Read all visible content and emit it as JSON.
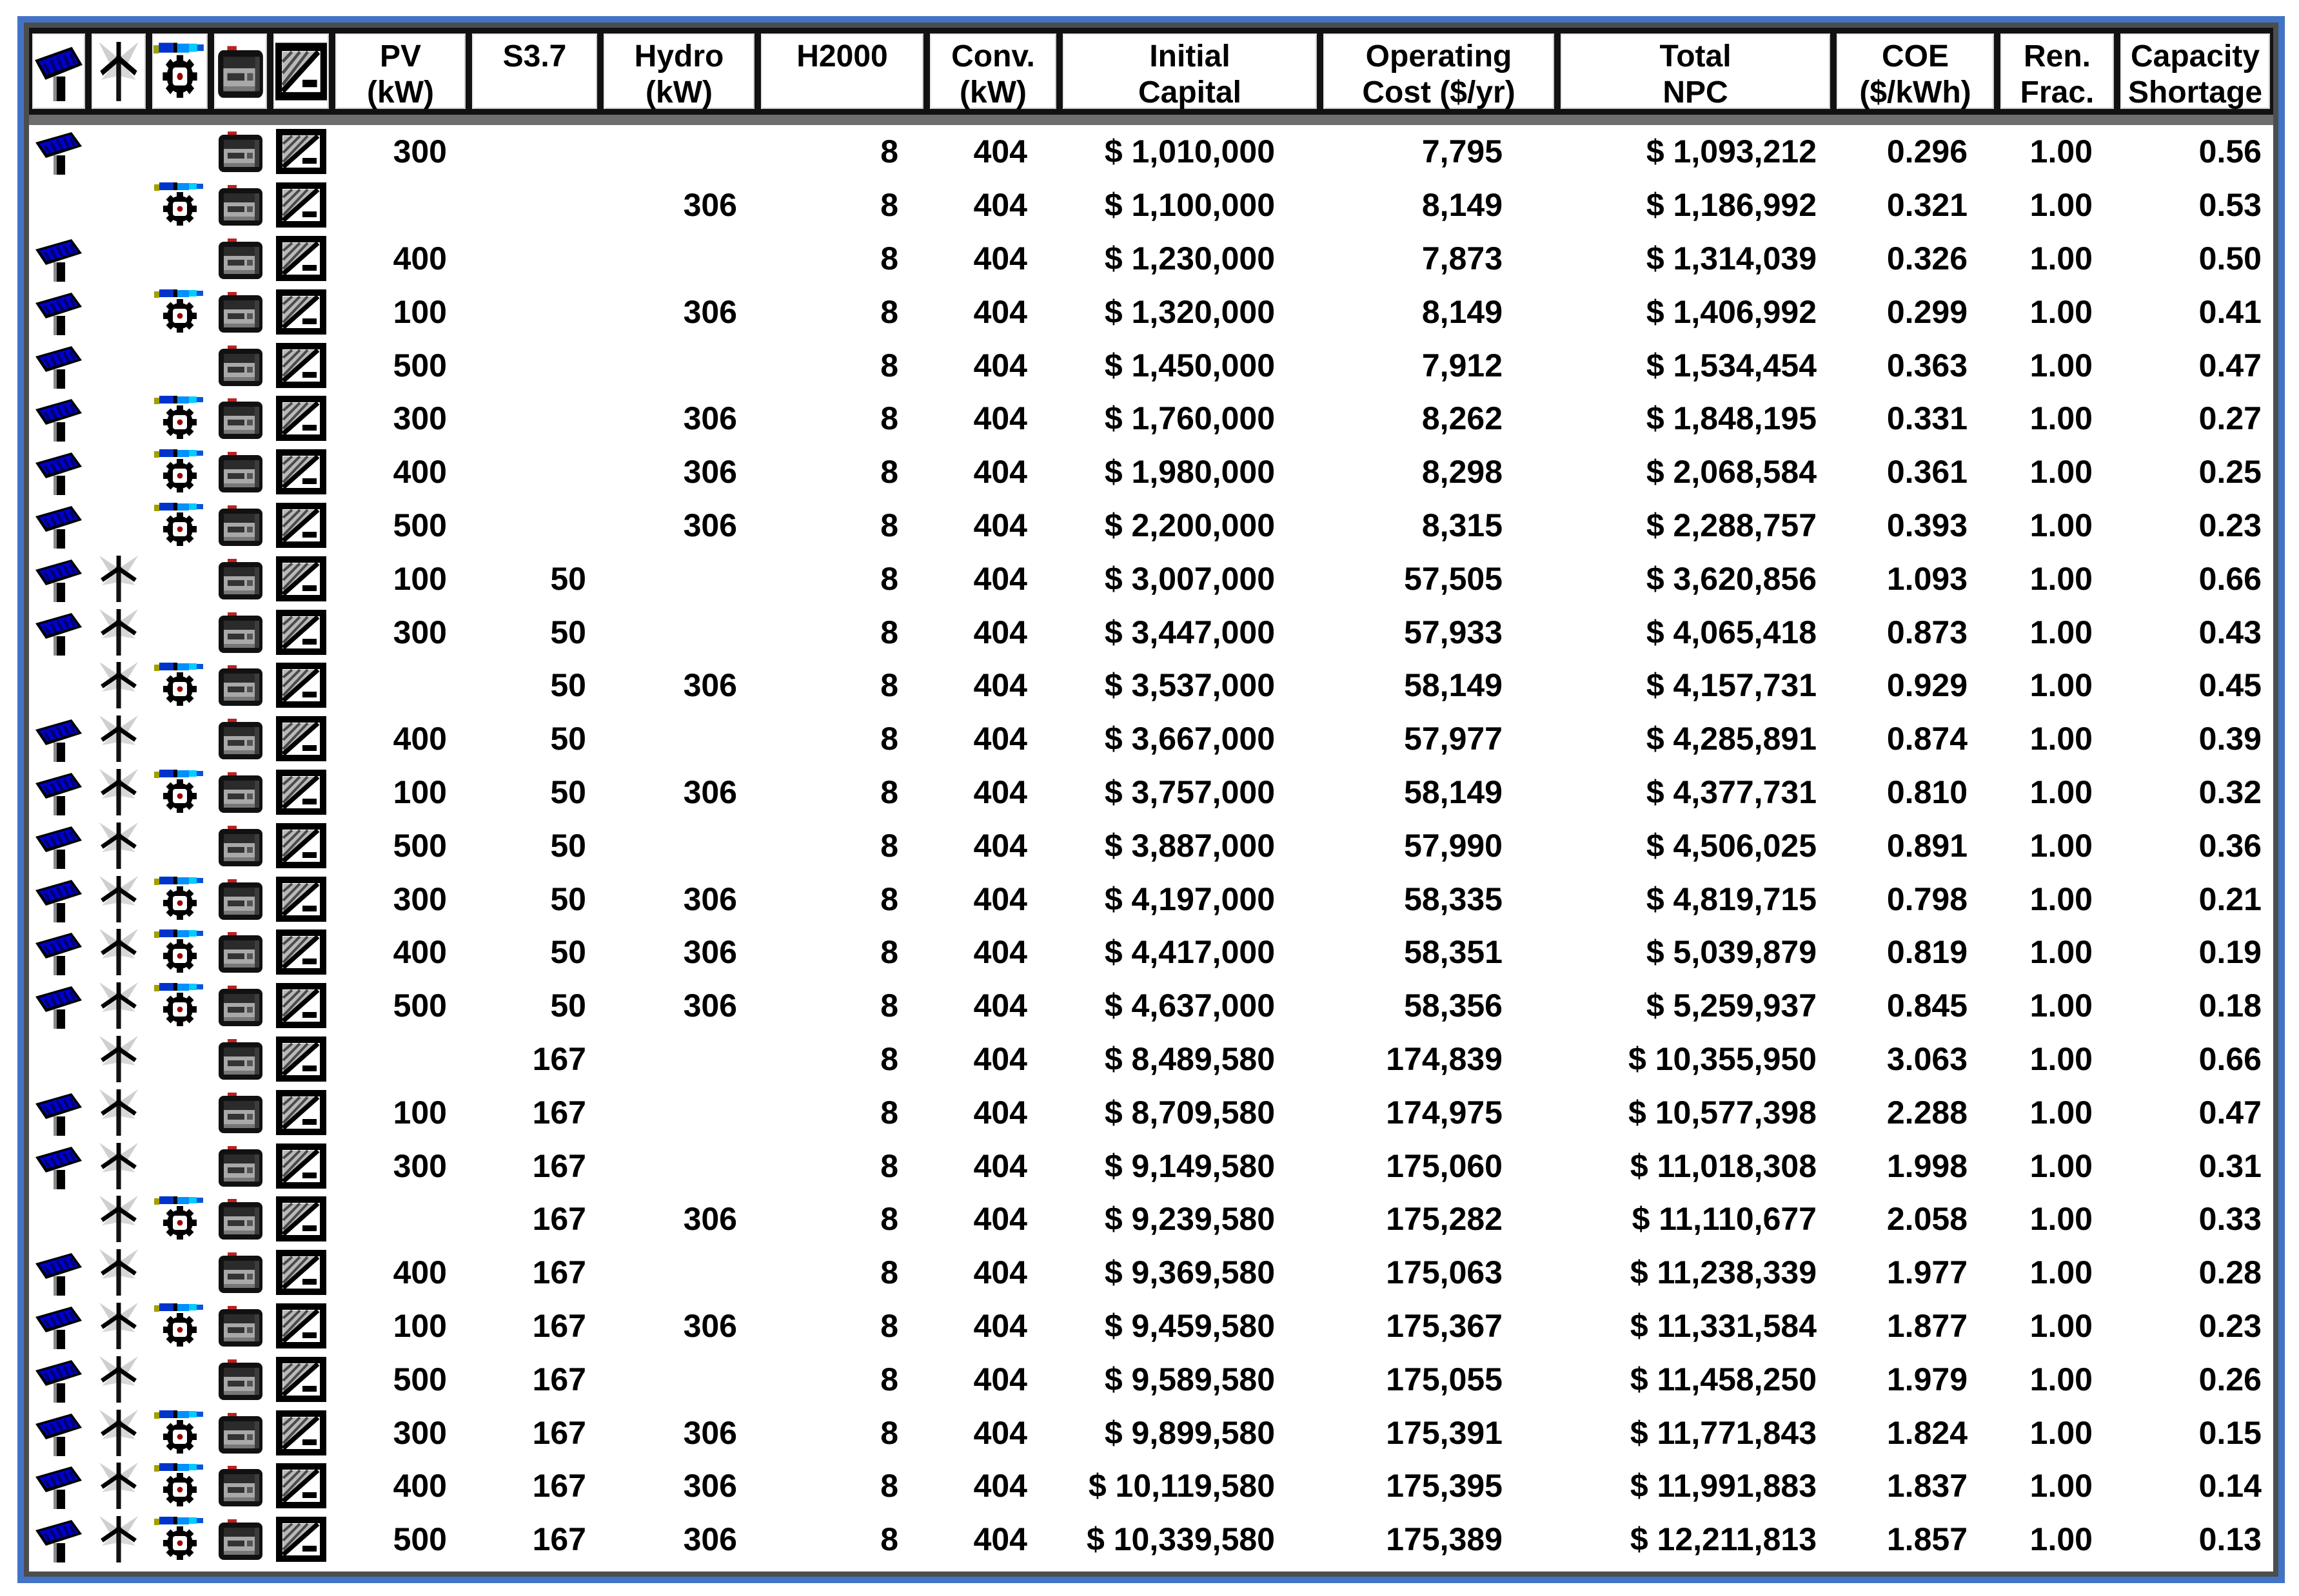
{
  "app": "HOMER optimization results table",
  "colors": {
    "outer_border_blue": "#4273c4",
    "inner_frame_gray": "#4d4d4d",
    "header_strip_gray": "#7b7b7b",
    "header_band_gray": "#6e6e6e",
    "cell_border_black": "#121212",
    "text_black": "#000000",
    "pv_panel_blue": "#0000cc",
    "water_dark_blue": "#0033cc",
    "water_bright_blue": "#0090ff",
    "water_cyan": "#00ccff",
    "battery_terminal_red": "#bb2222",
    "hub_dot_red": "#990000",
    "ghost_blade_gray": "#cfcfcf"
  },
  "table": {
    "columns": [
      {
        "type": "icon",
        "component": "pv",
        "icon_name": "pv-panel-icon"
      },
      {
        "type": "icon",
        "component": "wind",
        "icon_name": "wind-turbine-icon"
      },
      {
        "type": "icon",
        "component": "hydro",
        "icon_name": "hydro-turbine-icon"
      },
      {
        "type": "icon",
        "component": "battery",
        "icon_name": "battery-icon"
      },
      {
        "type": "icon",
        "component": "converter",
        "icon_name": "converter-icon"
      },
      {
        "type": "data",
        "key": "pv_kw",
        "lines": [
          "PV",
          "(kW)"
        ]
      },
      {
        "type": "data",
        "key": "s37",
        "lines": [
          "S3.7"
        ]
      },
      {
        "type": "data",
        "key": "hydro_kw",
        "lines": [
          "Hydro",
          "(kW)"
        ]
      },
      {
        "type": "data",
        "key": "h2000",
        "lines": [
          "H2000"
        ]
      },
      {
        "type": "data",
        "key": "conv_kw",
        "lines": [
          "Conv.",
          "(kW)"
        ]
      },
      {
        "type": "data",
        "key": "initial_capital",
        "lines": [
          "Initial",
          "Capital"
        ]
      },
      {
        "type": "data",
        "key": "operating_cost",
        "lines": [
          "Operating",
          "Cost ($/yr)"
        ]
      },
      {
        "type": "data",
        "key": "total_npc",
        "lines": [
          "Total",
          "NPC"
        ]
      },
      {
        "type": "data",
        "key": "coe",
        "lines": [
          "COE",
          "($/kWh)"
        ]
      },
      {
        "type": "data",
        "key": "ren_frac",
        "lines": [
          "Ren.",
          "Frac."
        ]
      },
      {
        "type": "data",
        "key": "capacity_shortage",
        "lines": [
          "Capacity",
          "Shortage"
        ]
      }
    ],
    "rows": [
      {
        "icons": [
          "pv",
          "battery",
          "converter"
        ],
        "pv_kw": "300",
        "s37": "",
        "hydro_kw": "",
        "h2000": "8",
        "conv_kw": "404",
        "initial_capital": "$ 1,010,000",
        "operating_cost": "7,795",
        "total_npc": "$ 1,093,212",
        "coe": "0.296",
        "ren_frac": "1.00",
        "capacity_shortage": "0.56"
      },
      {
        "icons": [
          "hydro",
          "battery",
          "converter"
        ],
        "pv_kw": "",
        "s37": "",
        "hydro_kw": "306",
        "h2000": "8",
        "conv_kw": "404",
        "initial_capital": "$ 1,100,000",
        "operating_cost": "8,149",
        "total_npc": "$ 1,186,992",
        "coe": "0.321",
        "ren_frac": "1.00",
        "capacity_shortage": "0.53"
      },
      {
        "icons": [
          "pv",
          "battery",
          "converter"
        ],
        "pv_kw": "400",
        "s37": "",
        "hydro_kw": "",
        "h2000": "8",
        "conv_kw": "404",
        "initial_capital": "$ 1,230,000",
        "operating_cost": "7,873",
        "total_npc": "$ 1,314,039",
        "coe": "0.326",
        "ren_frac": "1.00",
        "capacity_shortage": "0.50"
      },
      {
        "icons": [
          "pv",
          "hydro",
          "battery",
          "converter"
        ],
        "pv_kw": "100",
        "s37": "",
        "hydro_kw": "306",
        "h2000": "8",
        "conv_kw": "404",
        "initial_capital": "$ 1,320,000",
        "operating_cost": "8,149",
        "total_npc": "$ 1,406,992",
        "coe": "0.299",
        "ren_frac": "1.00",
        "capacity_shortage": "0.41"
      },
      {
        "icons": [
          "pv",
          "battery",
          "converter"
        ],
        "pv_kw": "500",
        "s37": "",
        "hydro_kw": "",
        "h2000": "8",
        "conv_kw": "404",
        "initial_capital": "$ 1,450,000",
        "operating_cost": "7,912",
        "total_npc": "$ 1,534,454",
        "coe": "0.363",
        "ren_frac": "1.00",
        "capacity_shortage": "0.47"
      },
      {
        "icons": [
          "pv",
          "hydro",
          "battery",
          "converter"
        ],
        "pv_kw": "300",
        "s37": "",
        "hydro_kw": "306",
        "h2000": "8",
        "conv_kw": "404",
        "initial_capital": "$ 1,760,000",
        "operating_cost": "8,262",
        "total_npc": "$ 1,848,195",
        "coe": "0.331",
        "ren_frac": "1.00",
        "capacity_shortage": "0.27"
      },
      {
        "icons": [
          "pv",
          "hydro",
          "battery",
          "converter"
        ],
        "pv_kw": "400",
        "s37": "",
        "hydro_kw": "306",
        "h2000": "8",
        "conv_kw": "404",
        "initial_capital": "$ 1,980,000",
        "operating_cost": "8,298",
        "total_npc": "$ 2,068,584",
        "coe": "0.361",
        "ren_frac": "1.00",
        "capacity_shortage": "0.25"
      },
      {
        "icons": [
          "pv",
          "hydro",
          "battery",
          "converter"
        ],
        "pv_kw": "500",
        "s37": "",
        "hydro_kw": "306",
        "h2000": "8",
        "conv_kw": "404",
        "initial_capital": "$ 2,200,000",
        "operating_cost": "8,315",
        "total_npc": "$ 2,288,757",
        "coe": "0.393",
        "ren_frac": "1.00",
        "capacity_shortage": "0.23"
      },
      {
        "icons": [
          "pv",
          "wind",
          "battery",
          "converter"
        ],
        "pv_kw": "100",
        "s37": "50",
        "hydro_kw": "",
        "h2000": "8",
        "conv_kw": "404",
        "initial_capital": "$ 3,007,000",
        "operating_cost": "57,505",
        "total_npc": "$ 3,620,856",
        "coe": "1.093",
        "ren_frac": "1.00",
        "capacity_shortage": "0.66"
      },
      {
        "icons": [
          "pv",
          "wind",
          "battery",
          "converter"
        ],
        "pv_kw": "300",
        "s37": "50",
        "hydro_kw": "",
        "h2000": "8",
        "conv_kw": "404",
        "initial_capital": "$ 3,447,000",
        "operating_cost": "57,933",
        "total_npc": "$ 4,065,418",
        "coe": "0.873",
        "ren_frac": "1.00",
        "capacity_shortage": "0.43"
      },
      {
        "icons": [
          "wind",
          "hydro",
          "battery",
          "converter"
        ],
        "pv_kw": "",
        "s37": "50",
        "hydro_kw": "306",
        "h2000": "8",
        "conv_kw": "404",
        "initial_capital": "$ 3,537,000",
        "operating_cost": "58,149",
        "total_npc": "$ 4,157,731",
        "coe": "0.929",
        "ren_frac": "1.00",
        "capacity_shortage": "0.45"
      },
      {
        "icons": [
          "pv",
          "wind",
          "battery",
          "converter"
        ],
        "pv_kw": "400",
        "s37": "50",
        "hydro_kw": "",
        "h2000": "8",
        "conv_kw": "404",
        "initial_capital": "$ 3,667,000",
        "operating_cost": "57,977",
        "total_npc": "$ 4,285,891",
        "coe": "0.874",
        "ren_frac": "1.00",
        "capacity_shortage": "0.39"
      },
      {
        "icons": [
          "pv",
          "wind",
          "hydro",
          "battery",
          "converter"
        ],
        "pv_kw": "100",
        "s37": "50",
        "hydro_kw": "306",
        "h2000": "8",
        "conv_kw": "404",
        "initial_capital": "$ 3,757,000",
        "operating_cost": "58,149",
        "total_npc": "$ 4,377,731",
        "coe": "0.810",
        "ren_frac": "1.00",
        "capacity_shortage": "0.32"
      },
      {
        "icons": [
          "pv",
          "wind",
          "battery",
          "converter"
        ],
        "pv_kw": "500",
        "s37": "50",
        "hydro_kw": "",
        "h2000": "8",
        "conv_kw": "404",
        "initial_capital": "$ 3,887,000",
        "operating_cost": "57,990",
        "total_npc": "$ 4,506,025",
        "coe": "0.891",
        "ren_frac": "1.00",
        "capacity_shortage": "0.36"
      },
      {
        "icons": [
          "pv",
          "wind",
          "hydro",
          "battery",
          "converter"
        ],
        "pv_kw": "300",
        "s37": "50",
        "hydro_kw": "306",
        "h2000": "8",
        "conv_kw": "404",
        "initial_capital": "$ 4,197,000",
        "operating_cost": "58,335",
        "total_npc": "$ 4,819,715",
        "coe": "0.798",
        "ren_frac": "1.00",
        "capacity_shortage": "0.21"
      },
      {
        "icons": [
          "pv",
          "wind",
          "hydro",
          "battery",
          "converter"
        ],
        "pv_kw": "400",
        "s37": "50",
        "hydro_kw": "306",
        "h2000": "8",
        "conv_kw": "404",
        "initial_capital": "$ 4,417,000",
        "operating_cost": "58,351",
        "total_npc": "$ 5,039,879",
        "coe": "0.819",
        "ren_frac": "1.00",
        "capacity_shortage": "0.19"
      },
      {
        "icons": [
          "pv",
          "wind",
          "hydro",
          "battery",
          "converter"
        ],
        "pv_kw": "500",
        "s37": "50",
        "hydro_kw": "306",
        "h2000": "8",
        "conv_kw": "404",
        "initial_capital": "$ 4,637,000",
        "operating_cost": "58,356",
        "total_npc": "$ 5,259,937",
        "coe": "0.845",
        "ren_frac": "1.00",
        "capacity_shortage": "0.18"
      },
      {
        "icons": [
          "wind",
          "battery",
          "converter"
        ],
        "pv_kw": "",
        "s37": "167",
        "hydro_kw": "",
        "h2000": "8",
        "conv_kw": "404",
        "initial_capital": "$ 8,489,580",
        "operating_cost": "174,839",
        "total_npc": "$ 10,355,950",
        "coe": "3.063",
        "ren_frac": "1.00",
        "capacity_shortage": "0.66"
      },
      {
        "icons": [
          "pv",
          "wind",
          "battery",
          "converter"
        ],
        "pv_kw": "100",
        "s37": "167",
        "hydro_kw": "",
        "h2000": "8",
        "conv_kw": "404",
        "initial_capital": "$ 8,709,580",
        "operating_cost": "174,975",
        "total_npc": "$ 10,577,398",
        "coe": "2.288",
        "ren_frac": "1.00",
        "capacity_shortage": "0.47"
      },
      {
        "icons": [
          "pv",
          "wind",
          "battery",
          "converter"
        ],
        "pv_kw": "300",
        "s37": "167",
        "hydro_kw": "",
        "h2000": "8",
        "conv_kw": "404",
        "initial_capital": "$ 9,149,580",
        "operating_cost": "175,060",
        "total_npc": "$ 11,018,308",
        "coe": "1.998",
        "ren_frac": "1.00",
        "capacity_shortage": "0.31"
      },
      {
        "icons": [
          "wind",
          "hydro",
          "battery",
          "converter"
        ],
        "pv_kw": "",
        "s37": "167",
        "hydro_kw": "306",
        "h2000": "8",
        "conv_kw": "404",
        "initial_capital": "$ 9,239,580",
        "operating_cost": "175,282",
        "total_npc": "$ 11,110,677",
        "coe": "2.058",
        "ren_frac": "1.00",
        "capacity_shortage": "0.33"
      },
      {
        "icons": [
          "pv",
          "wind",
          "battery",
          "converter"
        ],
        "pv_kw": "400",
        "s37": "167",
        "hydro_kw": "",
        "h2000": "8",
        "conv_kw": "404",
        "initial_capital": "$ 9,369,580",
        "operating_cost": "175,063",
        "total_npc": "$ 11,238,339",
        "coe": "1.977",
        "ren_frac": "1.00",
        "capacity_shortage": "0.28"
      },
      {
        "icons": [
          "pv",
          "wind",
          "hydro",
          "battery",
          "converter"
        ],
        "pv_kw": "100",
        "s37": "167",
        "hydro_kw": "306",
        "h2000": "8",
        "conv_kw": "404",
        "initial_capital": "$ 9,459,580",
        "operating_cost": "175,367",
        "total_npc": "$ 11,331,584",
        "coe": "1.877",
        "ren_frac": "1.00",
        "capacity_shortage": "0.23"
      },
      {
        "icons": [
          "pv",
          "wind",
          "battery",
          "converter"
        ],
        "pv_kw": "500",
        "s37": "167",
        "hydro_kw": "",
        "h2000": "8",
        "conv_kw": "404",
        "initial_capital": "$ 9,589,580",
        "operating_cost": "175,055",
        "total_npc": "$ 11,458,250",
        "coe": "1.979",
        "ren_frac": "1.00",
        "capacity_shortage": "0.26"
      },
      {
        "icons": [
          "pv",
          "wind",
          "hydro",
          "battery",
          "converter"
        ],
        "pv_kw": "300",
        "s37": "167",
        "hydro_kw": "306",
        "h2000": "8",
        "conv_kw": "404",
        "initial_capital": "$ 9,899,580",
        "operating_cost": "175,391",
        "total_npc": "$ 11,771,843",
        "coe": "1.824",
        "ren_frac": "1.00",
        "capacity_shortage": "0.15"
      },
      {
        "icons": [
          "pv",
          "wind",
          "hydro",
          "battery",
          "converter"
        ],
        "pv_kw": "400",
        "s37": "167",
        "hydro_kw": "306",
        "h2000": "8",
        "conv_kw": "404",
        "initial_capital": "$ 10,119,580",
        "operating_cost": "175,395",
        "total_npc": "$ 11,991,883",
        "coe": "1.837",
        "ren_frac": "1.00",
        "capacity_shortage": "0.14"
      },
      {
        "icons": [
          "pv",
          "wind",
          "hydro",
          "battery",
          "converter"
        ],
        "pv_kw": "500",
        "s37": "167",
        "hydro_kw": "306",
        "h2000": "8",
        "conv_kw": "404",
        "initial_capital": "$ 10,339,580",
        "operating_cost": "175,389",
        "total_npc": "$ 12,211,813",
        "coe": "1.857",
        "ren_frac": "1.00",
        "capacity_shortage": "0.13"
      }
    ]
  }
}
